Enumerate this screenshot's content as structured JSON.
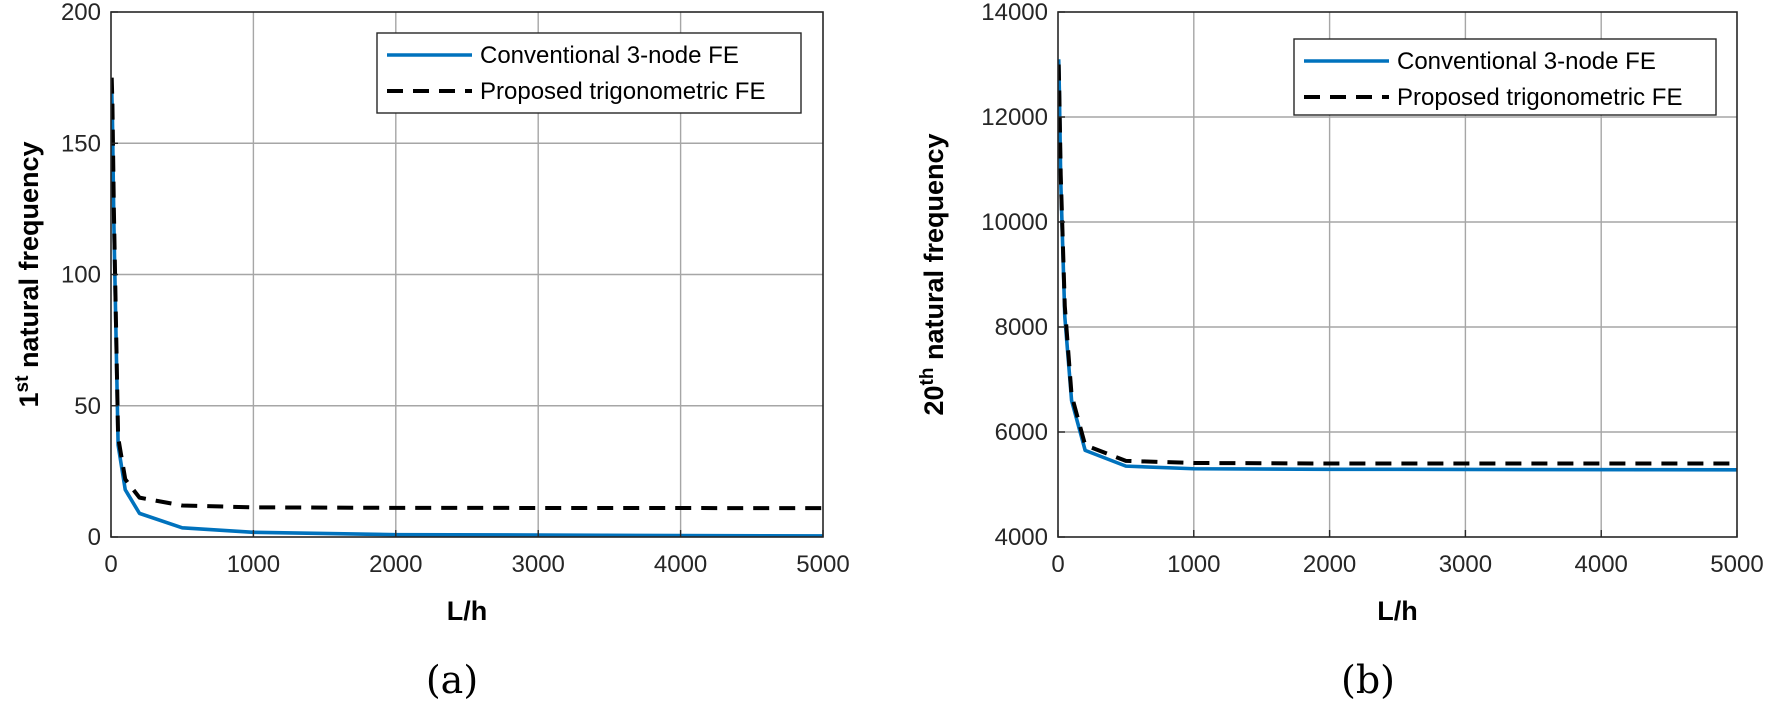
{
  "chart_data": [
    {
      "type": "line",
      "caption": "(a)",
      "xlabel": "L/h",
      "ylabel_prefix": "1",
      "ylabel_sup": "st",
      "ylabel_rest": " natural frequency",
      "xlim": [
        0,
        5000
      ],
      "ylim": [
        0,
        200
      ],
      "xticks": [
        0,
        1000,
        2000,
        3000,
        4000,
        5000
      ],
      "yticks": [
        0,
        50,
        100,
        150,
        200
      ],
      "grid": true,
      "legend_position": "top-right",
      "series": [
        {
          "name": "Conventional 3-node FE",
          "color": "#0072BD",
          "style": "solid",
          "x": [
            5,
            10,
            20,
            50,
            100,
            200,
            500,
            1000,
            2000,
            5000
          ],
          "y": [
            170,
            160,
            120,
            35,
            18,
            9,
            3.5,
            1.8,
            0.9,
            0.4
          ]
        },
        {
          "name": "Proposed trigonometric FE",
          "color": "#000000",
          "style": "dashed",
          "x": [
            5,
            10,
            20,
            50,
            100,
            200,
            500,
            1000,
            2000,
            5000
          ],
          "y": [
            175,
            165,
            125,
            38,
            22,
            15,
            12,
            11.3,
            11.1,
            11
          ]
        }
      ]
    },
    {
      "type": "line",
      "caption": "(b)",
      "xlabel": "L/h",
      "ylabel_prefix": "20",
      "ylabel_sup": "th",
      "ylabel_rest": " natural frequency",
      "xlim": [
        0,
        5000
      ],
      "ylim": [
        4000,
        14000
      ],
      "xticks": [
        0,
        1000,
        2000,
        3000,
        4000,
        5000
      ],
      "yticks": [
        4000,
        6000,
        8000,
        10000,
        12000,
        14000
      ],
      "grid": true,
      "legend_position": "top-right",
      "series": [
        {
          "name": "Conventional 3-node FE",
          "color": "#0072BD",
          "style": "solid",
          "x": [
            5,
            10,
            20,
            50,
            100,
            200,
            500,
            1000,
            2000,
            5000
          ],
          "y": [
            13100,
            12500,
            10800,
            8200,
            6600,
            5650,
            5350,
            5300,
            5290,
            5280
          ]
        },
        {
          "name": "Proposed trigonometric FE",
          "color": "#000000",
          "style": "dashed",
          "x": [
            5,
            10,
            20,
            50,
            100,
            200,
            500,
            1000,
            2000,
            5000
          ],
          "y": [
            13000,
            12400,
            10900,
            8400,
            6700,
            5750,
            5450,
            5410,
            5400,
            5400
          ]
        }
      ]
    }
  ]
}
